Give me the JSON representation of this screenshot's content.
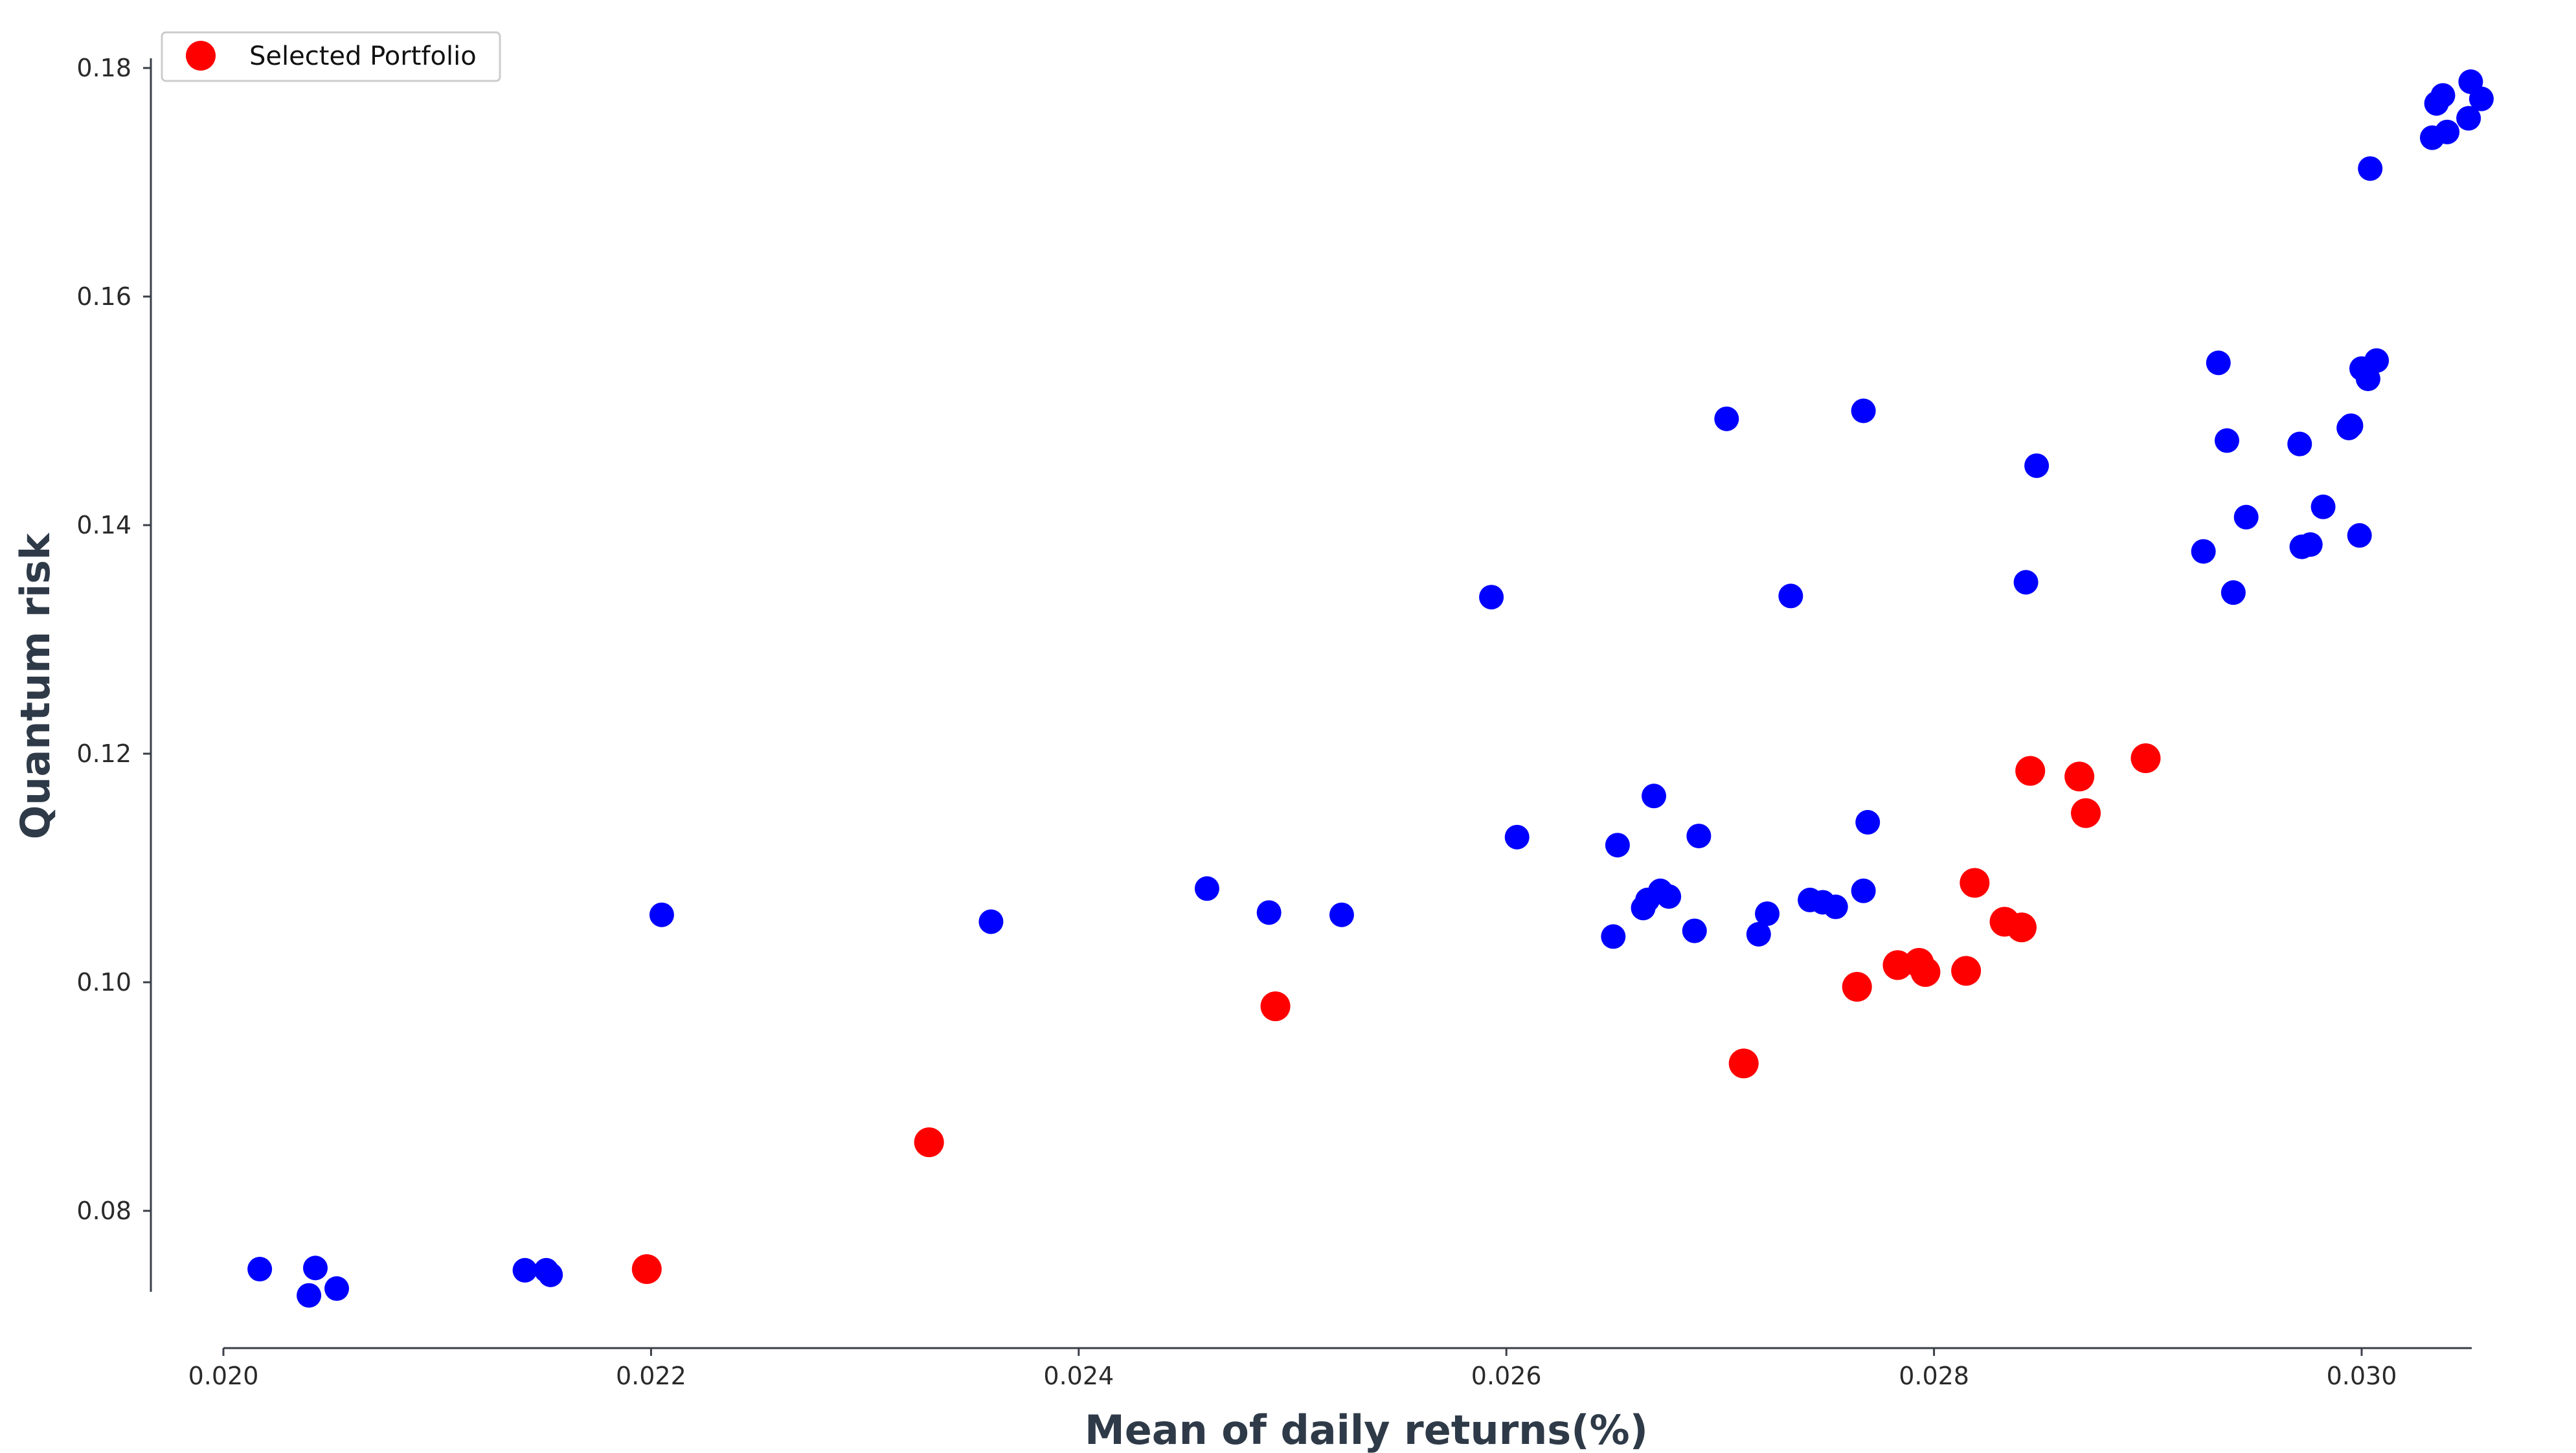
{
  "chart_data": {
    "type": "scatter",
    "xlabel": "Mean of daily returns(%)",
    "ylabel": "Quantum risk",
    "xlim": [
      0.0195,
      0.03055
    ],
    "ylim": [
      0.0725,
      0.1815
    ],
    "x_ticks": [
      "0.020",
      "0.022",
      "0.024",
      "0.026",
      "0.028",
      "0.030"
    ],
    "y_ticks": [
      "0.08",
      "0.10",
      "0.12",
      "0.14",
      "0.16",
      "0.18"
    ],
    "legend": {
      "position": "top-left",
      "entries": [
        "Selected Portfolio"
      ]
    },
    "grid": false,
    "colors": {
      "blue": "#0000ff",
      "red": "#ff0000",
      "axis": "#3a3f47",
      "title": "#2f3a48"
    },
    "series": [
      {
        "color": "#0000ff",
        "points": [
          [
            0.02017,
            0.0749
          ],
          [
            0.02043,
            0.075
          ],
          [
            0.0204,
            0.0726
          ],
          [
            0.02053,
            0.0732
          ],
          [
            0.02141,
            0.0748
          ],
          [
            0.02151,
            0.0748
          ],
          [
            0.02153,
            0.0744
          ],
          [
            0.02205,
            0.1059
          ],
          [
            0.02359,
            0.1053
          ],
          [
            0.0246,
            0.1082
          ],
          [
            0.02489,
            0.1061
          ],
          [
            0.02523,
            0.1059
          ],
          [
            0.02593,
            0.1337
          ],
          [
            0.02605,
            0.1127
          ],
          [
            0.0265,
            0.104
          ],
          [
            0.02652,
            0.112
          ],
          [
            0.02664,
            0.1065
          ],
          [
            0.02666,
            0.1072
          ],
          [
            0.02669,
            0.1163
          ],
          [
            0.02672,
            0.108
          ],
          [
            0.02676,
            0.1075
          ],
          [
            0.02688,
            0.1045
          ],
          [
            0.0269,
            0.1128
          ],
          [
            0.02703,
            0.1493
          ],
          [
            0.02718,
            0.1042
          ],
          [
            0.02722,
            0.106
          ],
          [
            0.02733,
            0.1338
          ],
          [
            0.02742,
            0.1072
          ],
          [
            0.02748,
            0.107
          ],
          [
            0.02754,
            0.1066
          ],
          [
            0.02767,
            0.108
          ],
          [
            0.02767,
            0.15
          ],
          [
            0.02769,
            0.114
          ],
          [
            0.02843,
            0.135
          ],
          [
            0.02848,
            0.1452
          ],
          [
            0.02926,
            0.1377
          ],
          [
            0.02933,
            0.1542
          ],
          [
            0.02937,
            0.1474
          ],
          [
            0.0294,
            0.1341
          ],
          [
            0.02946,
            0.1407
          ],
          [
            0.02971,
            0.1471
          ],
          [
            0.02972,
            0.1381
          ],
          [
            0.02976,
            0.1383
          ],
          [
            0.02982,
            0.1416
          ],
          [
            0.02994,
            0.1485
          ],
          [
            0.02995,
            0.1487
          ],
          [
            0.02999,
            0.1391
          ],
          [
            0.03,
            0.1537
          ],
          [
            0.03003,
            0.1528
          ],
          [
            0.03004,
            0.1712
          ],
          [
            0.03007,
            0.1544
          ],
          [
            0.03033,
            0.1739
          ],
          [
            0.03035,
            0.1769
          ],
          [
            0.03038,
            0.1776
          ],
          [
            0.0304,
            0.1744
          ],
          [
            0.0305,
            0.1756
          ],
          [
            0.03051,
            0.1788
          ],
          [
            0.03056,
            0.1773
          ]
        ]
      },
      {
        "name": "Selected Portfolio",
        "color": "#ff0000",
        "points": [
          [
            0.02198,
            0.0749
          ],
          [
            0.0233,
            0.086
          ],
          [
            0.02492,
            0.0979
          ],
          [
            0.02711,
            0.0929
          ],
          [
            0.02764,
            0.0996
          ],
          [
            0.02783,
            0.1015
          ],
          [
            0.02793,
            0.1017
          ],
          [
            0.02796,
            0.1009
          ],
          [
            0.02815,
            0.101
          ],
          [
            0.02819,
            0.1087
          ],
          [
            0.02833,
            0.1053
          ],
          [
            0.02841,
            0.1048
          ],
          [
            0.02845,
            0.1185
          ],
          [
            0.02868,
            0.118
          ],
          [
            0.02871,
            0.1148
          ],
          [
            0.02899,
            0.1196
          ]
        ]
      }
    ]
  }
}
